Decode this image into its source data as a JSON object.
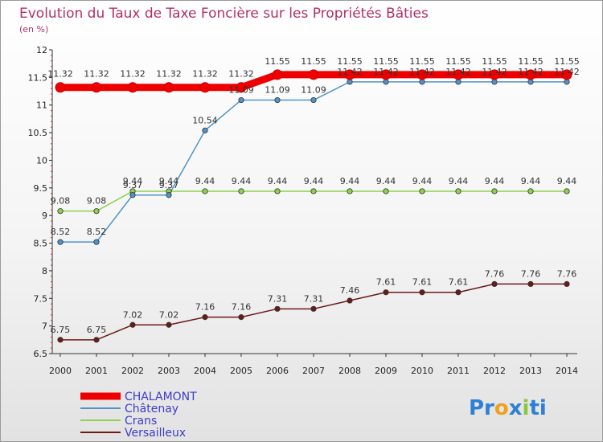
{
  "title": "Evolution du Taux de Taxe Foncière sur les Propriétés Bâties",
  "subtitle": "(en %)",
  "logo": {
    "parts": [
      "Pr",
      "o",
      "x",
      "i",
      "ti"
    ],
    "colors": [
      "#2e7fd6",
      "#f0a020",
      "#2e7fd6",
      "#8cc63f",
      "#2e7fd6"
    ]
  },
  "chart_data": {
    "type": "line",
    "title": "Evolution du Taux de Taxe Foncière sur les Propriétés Bâties",
    "ylabel": "(en %)",
    "ylim": [
      6.5,
      12
    ],
    "y_ticks": [
      "6.5",
      "7",
      "7.5",
      "8",
      "8.5",
      "9",
      "9.5",
      "10",
      "10.5",
      "11",
      "11.5",
      "12"
    ],
    "x": [
      "2000",
      "2001",
      "2002",
      "2003",
      "2004",
      "2005",
      "2006",
      "2007",
      "2008",
      "2009",
      "2010",
      "2011",
      "2012",
      "2013",
      "2014"
    ],
    "series": [
      {
        "name": "Versailleux",
        "color": "#6b1a1a",
        "values": [
          6.75,
          6.75,
          7.02,
          7.02,
          7.16,
          7.16,
          7.31,
          7.31,
          7.46,
          7.61,
          7.61,
          7.61,
          7.76,
          7.76,
          7.76
        ],
        "labels": [
          "6.75",
          "6.75",
          "7.02",
          "7.02",
          "7.16",
          "7.16",
          "7.31",
          "7.31",
          "7.46",
          "7.61",
          "7.61",
          "7.61",
          "7.76",
          "7.76",
          "7.76"
        ]
      },
      {
        "name": "Crans",
        "color": "#8fd14f",
        "values": [
          9.08,
          9.08,
          9.44,
          9.44,
          9.44,
          9.44,
          9.44,
          9.44,
          9.44,
          9.44,
          9.44,
          9.44,
          9.44,
          9.44,
          9.44
        ],
        "labels": [
          "9.08",
          "9.08",
          "9.44",
          "9.44",
          "9.44",
          "9.44",
          "9.44",
          "9.44",
          "9.44",
          "9.44",
          "9.44",
          "9.44",
          "9.44",
          "9.44",
          "9.44"
        ]
      },
      {
        "name": "Châtenay",
        "color": "#4f93c9",
        "values": [
          8.52,
          8.52,
          9.37,
          9.37,
          10.54,
          11.09,
          11.09,
          11.09,
          11.42,
          11.42,
          11.42,
          11.42,
          11.42,
          11.42,
          11.42
        ],
        "labels": [
          "8.52",
          "8.52",
          "9.37",
          "9.37",
          "10.54",
          "11.09",
          "11.09",
          "11.09",
          "11.42",
          "11.42",
          "11.42",
          "11.42",
          "11.42",
          "11.42",
          "11.42"
        ]
      },
      {
        "name": "CHALAMONT",
        "color": "#ee0000",
        "values": [
          11.32,
          11.32,
          11.32,
          11.32,
          11.32,
          11.32,
          11.55,
          11.55,
          11.55,
          11.55,
          11.55,
          11.55,
          11.55,
          11.55,
          11.55
        ],
        "labels": [
          "11.32",
          "11.32",
          "11.32",
          "11.32",
          "11.32",
          "11.32",
          "11.55",
          "11.55",
          "11.55",
          "11.55",
          "11.55",
          "11.55",
          "11.55",
          "11.55",
          "11.55"
        ]
      }
    ],
    "legend": [
      "CHALAMONT",
      "Châtenay",
      "Crans",
      "Versailleux"
    ],
    "grid": false
  }
}
